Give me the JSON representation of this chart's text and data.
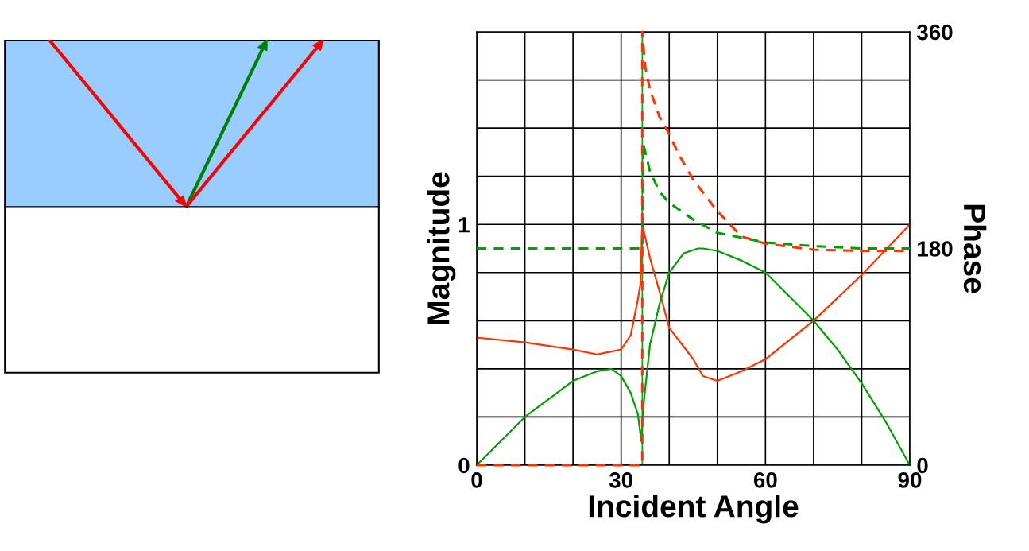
{
  "chart_data": {
    "type": "line",
    "xlabel": "Incident Angle",
    "ylabel": "Magnitude",
    "y2label": "Phase",
    "xlim": [
      0,
      90
    ],
    "xticks": [
      0,
      {
        "value": 10,
        "label": null
      },
      {
        "value": 20,
        "label": null
      },
      30,
      {
        "value": 40,
        "label": null
      },
      {
        "value": 50,
        "label": null
      },
      60,
      {
        "value": 70,
        "label": null
      },
      {
        "value": 80,
        "label": null
      },
      90
    ],
    "ylim": [
      0,
      1.8
    ],
    "yticks": [
      0,
      {
        "value": 0.2,
        "label": null
      },
      {
        "value": 0.4,
        "label": null
      },
      {
        "value": 0.6,
        "label": null
      },
      {
        "value": 0.8,
        "label": null
      },
      1,
      {
        "value": 1.2,
        "label": null
      },
      {
        "value": 1.4,
        "label": null
      },
      {
        "value": 1.6,
        "label": null
      },
      {
        "value": 1.8,
        "label": null
      }
    ],
    "y2lim": [
      0,
      360
    ],
    "y2ticks": [
      0,
      180,
      360
    ],
    "grid": true,
    "legend": false,
    "ref_lines": [
      {
        "axis": "x",
        "value": 34.4,
        "label": null,
        "color": "#00b000"
      }
    ],
    "series": [
      {
        "color": "#ff3300",
        "line_style": "solid",
        "x": [
          0,
          10,
          20,
          25,
          30,
          32,
          33.5,
          34,
          34.4,
          36,
          38,
          40,
          45,
          47,
          50,
          55,
          60,
          70,
          80,
          90
        ],
        "values": [
          0.53,
          0.51,
          0.48,
          0.46,
          0.48,
          0.54,
          0.69,
          0.75,
          1.0,
          0.86,
          0.72,
          0.57,
          0.44,
          0.37,
          0.35,
          0.39,
          0.44,
          0.6,
          0.79,
          1.0
        ]
      },
      {
        "color": "#00a000",
        "line_style": "solid",
        "x": [
          0,
          10,
          20,
          25,
          28,
          30,
          32,
          33.5,
          34.2,
          34.6,
          36,
          38,
          40,
          43,
          46,
          47,
          50,
          55,
          60,
          65,
          70,
          75,
          80,
          85,
          90
        ],
        "values": [
          0,
          0.2,
          0.35,
          0.39,
          0.4,
          0.37,
          0.3,
          0.21,
          0.1,
          0.24,
          0.5,
          0.67,
          0.8,
          0.88,
          0.9,
          0.9,
          0.89,
          0.85,
          0.8,
          0.7,
          0.6,
          0.48,
          0.34,
          0.18,
          0
        ]
      },
      {
        "color": "#00a000",
        "line_style": "dashed",
        "axis": "y2",
        "x": [
          0,
          34.4,
          34.6,
          36,
          38,
          40,
          45,
          50,
          60,
          70,
          80,
          90
        ],
        "values": [
          180,
          180,
          267,
          244,
          227,
          218,
          204,
          193,
          185,
          182,
          180,
          180
        ]
      },
      {
        "color": "#ff3300",
        "line_style": "dashed",
        "axis": "y2",
        "x": [
          0,
          34.4,
          34.4,
          35,
          36,
          38,
          40,
          42,
          45,
          50,
          55,
          60,
          70,
          80,
          90
        ],
        "values": [
          0,
          0,
          360,
          331,
          312,
          289,
          275,
          258,
          237,
          211,
          190,
          184,
          179,
          178,
          178
        ]
      }
    ]
  }
}
